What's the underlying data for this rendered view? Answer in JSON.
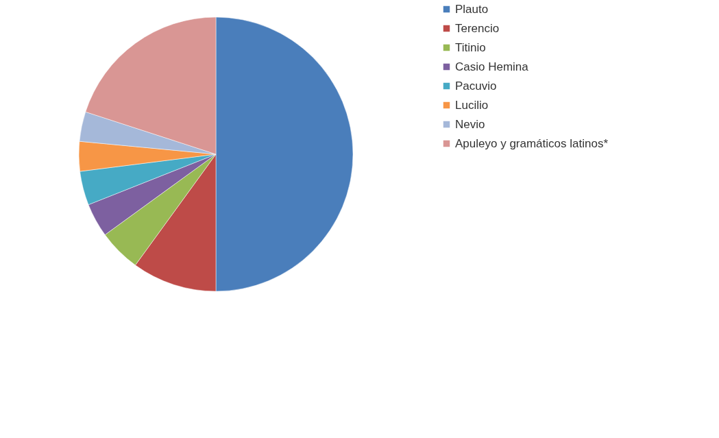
{
  "chart_data": {
    "type": "pie",
    "categories": [
      "Plauto",
      "Terencio",
      "Titinio",
      "Casio Hemina",
      "Pacuvio",
      "Lucilio",
      "Nevio",
      "Apuleyo y gramáticos latinos*"
    ],
    "values": [
      50,
      10,
      5,
      4,
      4,
      3.5,
      3.5,
      20
    ],
    "colors": [
      "#4a7ebb",
      "#be4b48",
      "#98b954",
      "#7d60a0",
      "#46aac5",
      "#f79646",
      "#a5b8d9",
      "#d99694"
    ],
    "legend": "right"
  }
}
